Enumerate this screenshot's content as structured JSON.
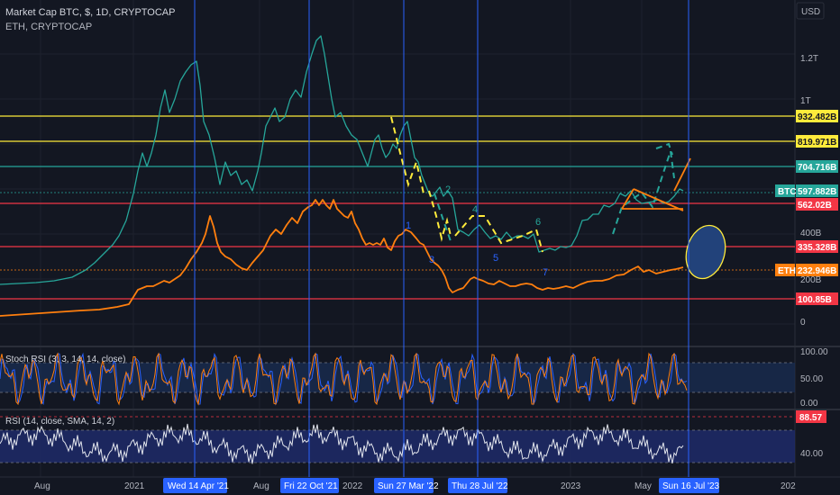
{
  "header": {
    "title": "Market Cap BTC, $, 1D, CRYPTOCAP",
    "overlay": "ETH, CRYPTOCAP"
  },
  "axis": {
    "currency": "USD",
    "labels": [
      "1.2T",
      "1T",
      "400B",
      "200B",
      "0"
    ]
  },
  "price_tags": {
    "l1": "932.482B",
    "l2": "819.971B",
    "l3": "704.716B",
    "btc_name": "BTC",
    "btc_value": "597.882B",
    "l4": "562.02B",
    "l5": "335.328B",
    "eth_name": "ETH",
    "eth_value": "232.946B",
    "l6": "100.85B"
  },
  "wave_labels": [
    "1",
    "3",
    "4",
    "5",
    "6",
    "7",
    "2"
  ],
  "stoch": {
    "title": "Stoch RSI (3, 3, 14, 14, close)",
    "labels": [
      "100.00",
      "50.00",
      "0.00"
    ]
  },
  "rsi": {
    "title": "RSI (14, close, SMA, 14, 2)",
    "value": "88.57",
    "label": "40.00"
  },
  "time_axis": {
    "labels": [
      "Aug",
      "2021",
      "Aug",
      "2022",
      "2023",
      "May",
      "202"
    ],
    "highlights": [
      "Wed 14 Apr '21",
      "Fri 22 Oct '21",
      "Sun 27 Mar '22",
      "Thu 28 Jul '22",
      "Sun 16 Jul '23"
    ]
  },
  "colors": {
    "bg": "#131722",
    "yellow": "#ffeb3b",
    "green": "#26a69a",
    "red": "#f23645",
    "blue": "#2962ff",
    "orange": "#ff7f0e"
  }
}
